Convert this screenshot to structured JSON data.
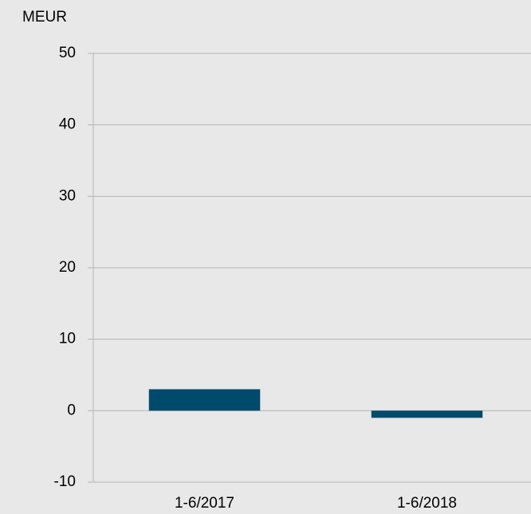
{
  "chart_data": {
    "type": "bar",
    "ylabel": "MEUR",
    "categories": [
      "1-6/2017",
      "1-6/2018"
    ],
    "values": [
      3,
      -1
    ],
    "color": "#004a6b",
    "ylim": [
      -10,
      50
    ],
    "yticks": [
      -10,
      0,
      10,
      20,
      30,
      40,
      50
    ],
    "grid": true
  }
}
